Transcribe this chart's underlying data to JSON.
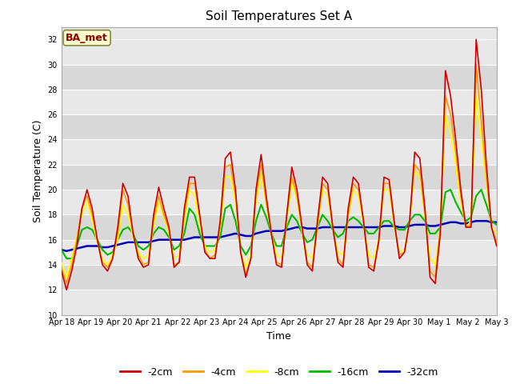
{
  "title": "Soil Temperatures Set A",
  "xlabel": "Time",
  "ylabel": "Soil Temperature (C)",
  "annotation": "BA_met",
  "ylim": [
    10,
    33
  ],
  "yticks": [
    10,
    12,
    14,
    16,
    18,
    20,
    22,
    24,
    26,
    28,
    30,
    32
  ],
  "x_labels": [
    "Apr 18",
    "Apr 19",
    "Apr 20",
    "Apr 21",
    "Apr 22",
    "Apr 23",
    "Apr 24",
    "Apr 25",
    "Apr 26",
    "Apr 27",
    "Apr 28",
    "Apr 29",
    "Apr 30",
    "May 1",
    "May 2",
    "May 3"
  ],
  "colors": {
    "-2cm": "#cc0000",
    "-4cm": "#ff9900",
    "-8cm": "#ffff00",
    "-16cm": "#00bb00",
    "-32cm": "#0000bb"
  },
  "fig_bg": "#ffffff",
  "plot_bg_light": "#e8e8e8",
  "plot_bg_dark": "#d8d8d8",
  "legend_labels": [
    "-2cm",
    "-4cm",
    "-8cm",
    "-16cm",
    "-32cm"
  ],
  "series": {
    "-2cm": [
      13.5,
      12.0,
      13.5,
      15.5,
      18.5,
      20.0,
      18.5,
      16.0,
      14.0,
      13.5,
      14.5,
      17.0,
      20.5,
      19.5,
      16.5,
      14.5,
      13.8,
      14.0,
      18.0,
      20.2,
      18.5,
      17.0,
      13.8,
      14.2,
      18.5,
      21.0,
      21.0,
      18.0,
      15.0,
      14.5,
      14.5,
      17.5,
      22.5,
      23.0,
      20.0,
      15.0,
      13.0,
      14.5,
      20.0,
      22.8,
      19.5,
      16.5,
      14.0,
      13.8,
      18.0,
      21.8,
      20.0,
      17.0,
      14.0,
      13.5,
      17.5,
      21.0,
      20.5,
      17.0,
      14.2,
      13.8,
      18.5,
      21.0,
      20.5,
      17.5,
      13.8,
      13.5,
      16.0,
      21.0,
      20.8,
      17.5,
      14.5,
      15.0,
      17.5,
      23.0,
      22.5,
      18.5,
      13.0,
      12.5,
      16.5,
      29.5,
      27.5,
      24.0,
      20.0,
      17.0,
      17.0,
      32.0,
      28.0,
      22.0,
      17.0,
      15.5
    ],
    "-4cm": [
      13.8,
      12.5,
      14.0,
      16.0,
      18.5,
      19.5,
      18.0,
      16.0,
      14.2,
      13.8,
      14.5,
      16.5,
      20.0,
      18.8,
      16.5,
      14.8,
      14.0,
      14.2,
      17.5,
      19.5,
      18.0,
      16.8,
      14.0,
      14.2,
      18.0,
      20.5,
      20.5,
      17.8,
      15.2,
      14.5,
      14.8,
      17.0,
      21.8,
      22.0,
      19.5,
      15.0,
      13.2,
      14.5,
      19.5,
      22.0,
      19.0,
      16.5,
      14.2,
      14.0,
      17.8,
      21.0,
      19.5,
      16.8,
      14.2,
      13.8,
      17.0,
      20.5,
      20.0,
      17.0,
      14.5,
      14.0,
      18.0,
      20.5,
      20.0,
      17.5,
      14.0,
      13.8,
      15.8,
      20.5,
      20.5,
      17.2,
      14.8,
      15.0,
      17.5,
      22.0,
      21.5,
      18.0,
      13.5,
      13.0,
      17.0,
      27.5,
      26.0,
      23.0,
      19.5,
      17.0,
      17.2,
      30.0,
      25.5,
      21.0,
      17.0,
      15.8
    ],
    "-8cm": [
      14.2,
      13.0,
      14.5,
      16.2,
      18.0,
      19.0,
      17.5,
      15.8,
      14.5,
      14.0,
      14.8,
      16.0,
      18.8,
      18.0,
      16.2,
      15.0,
      14.5,
      14.8,
      17.0,
      19.0,
      17.8,
      16.5,
      14.5,
      14.8,
      17.5,
      20.0,
      19.5,
      17.2,
      15.5,
      15.0,
      15.2,
      16.8,
      21.0,
      21.0,
      19.0,
      15.0,
      13.8,
      15.0,
      19.0,
      21.2,
      18.8,
      16.5,
      14.8,
      14.5,
      17.5,
      20.5,
      19.2,
      16.5,
      14.8,
      14.5,
      17.0,
      20.0,
      19.5,
      16.8,
      15.0,
      14.8,
      17.8,
      20.0,
      19.5,
      17.2,
      14.8,
      14.5,
      16.0,
      20.0,
      20.0,
      17.0,
      15.0,
      15.2,
      17.5,
      21.5,
      21.0,
      17.8,
      14.5,
      14.0,
      17.0,
      26.0,
      24.5,
      22.0,
      19.0,
      17.0,
      17.5,
      27.5,
      24.0,
      20.5,
      17.0,
      16.5
    ],
    "-16cm": [
      15.2,
      14.5,
      14.5,
      15.5,
      16.8,
      17.0,
      16.8,
      16.0,
      15.2,
      14.8,
      15.0,
      16.0,
      16.8,
      17.0,
      16.5,
      15.5,
      15.2,
      15.5,
      16.5,
      17.0,
      16.8,
      16.2,
      15.2,
      15.5,
      16.5,
      18.5,
      18.0,
      16.5,
      15.5,
      15.5,
      15.5,
      16.2,
      18.5,
      18.8,
      17.5,
      15.5,
      14.8,
      15.5,
      17.5,
      18.8,
      17.8,
      16.5,
      15.5,
      15.5,
      17.0,
      18.0,
      17.5,
      16.5,
      15.8,
      16.0,
      17.0,
      18.0,
      17.5,
      16.8,
      16.2,
      16.5,
      17.5,
      17.8,
      17.5,
      17.0,
      16.5,
      16.5,
      17.0,
      17.5,
      17.5,
      17.0,
      16.8,
      16.8,
      17.5,
      18.0,
      18.0,
      17.5,
      16.5,
      16.5,
      17.0,
      19.8,
      20.0,
      19.0,
      18.2,
      17.5,
      17.8,
      19.5,
      20.0,
      18.8,
      17.5,
      17.2
    ],
    "-32cm": [
      15.2,
      15.1,
      15.2,
      15.3,
      15.4,
      15.5,
      15.5,
      15.5,
      15.4,
      15.4,
      15.5,
      15.6,
      15.7,
      15.8,
      15.8,
      15.8,
      15.8,
      15.8,
      15.9,
      16.0,
      16.0,
      16.0,
      16.0,
      16.0,
      16.0,
      16.1,
      16.2,
      16.2,
      16.2,
      16.2,
      16.2,
      16.2,
      16.3,
      16.4,
      16.5,
      16.4,
      16.3,
      16.3,
      16.5,
      16.6,
      16.7,
      16.7,
      16.7,
      16.7,
      16.8,
      16.9,
      17.0,
      17.0,
      16.9,
      16.9,
      16.9,
      17.0,
      17.0,
      17.0,
      17.0,
      17.0,
      17.0,
      17.0,
      17.0,
      17.0,
      17.0,
      17.0,
      17.0,
      17.1,
      17.1,
      17.1,
      17.0,
      17.0,
      17.1,
      17.2,
      17.2,
      17.2,
      17.1,
      17.1,
      17.2,
      17.3,
      17.4,
      17.4,
      17.3,
      17.3,
      17.4,
      17.5,
      17.5,
      17.5,
      17.4,
      17.4
    ]
  },
  "n_points": 86
}
